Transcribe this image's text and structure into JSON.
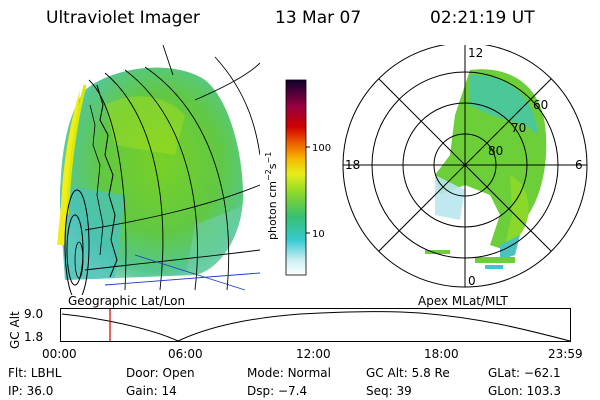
{
  "header": {
    "title": "Ultraviolet Imager",
    "date": "13 Mar 07",
    "time": "02:21:19 UT"
  },
  "left_panel": {
    "caption": "Geographic Lat/Lon"
  },
  "colorbar": {
    "label_main": "photon cm",
    "label_exp1": "−2",
    "label_mid": "s",
    "label_exp2": "−1",
    "ticks": [
      "100",
      "10"
    ],
    "tick_values": [
      100,
      10
    ],
    "range": [
      3,
      400
    ],
    "scale": "log"
  },
  "polar_plot": {
    "caption": "Apex MLat/MLT",
    "mlt_labels": {
      "top": "12",
      "left": "18",
      "right": "6",
      "bottom": "0"
    },
    "lat_labels": [
      "60",
      "70",
      "80"
    ]
  },
  "gc_alt_plot": {
    "ylabel": "GC Alt",
    "yticks": [
      "9.0",
      "1.8"
    ],
    "xticks": [
      "00:00",
      "06:00",
      "12:00",
      "18:00",
      "23:59"
    ],
    "marker_time": "02:21",
    "marker_color": "#cc0000"
  },
  "info": {
    "row1": [
      {
        "key": "Flt:",
        "value": "LBHL"
      },
      {
        "key": "Door:",
        "value": "Open"
      },
      {
        "key": "Mode:",
        "value": "Normal"
      },
      {
        "key": "GC Alt:",
        "value": "5.8 Re"
      },
      {
        "key": "GLat:",
        "value": "−62.1"
      }
    ],
    "row2": [
      {
        "key": "IP:",
        "value": "36.0"
      },
      {
        "key": "Gain:",
        "value": "14"
      },
      {
        "key": "Dsp:",
        "value": "−7.4"
      },
      {
        "key": "Seq:",
        "value": "39"
      },
      {
        "key": "GLon:",
        "value": "103.3"
      }
    ]
  }
}
